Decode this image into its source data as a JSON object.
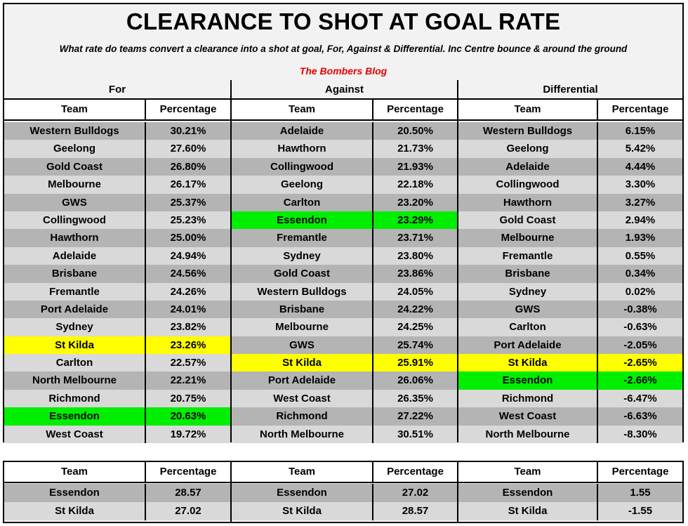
{
  "title": "CLEARANCE TO SHOT AT GOAL RATE",
  "subtitle": "What rate do teams convert a clearance into a shot at goal, For, Against & Differential. Inc Centre bounce & around the ground",
  "blog": "The Bombers Blog",
  "colors": {
    "odd_row": "#b4b4b4",
    "even_row": "#d9d9d9",
    "highlight_stkilda": "#ffff00",
    "highlight_essendon": "#00ee00",
    "blog_text": "#e60000"
  },
  "sections": [
    {
      "heading": "For",
      "col_team": "Team",
      "col_pct": "Percentage",
      "rows": [
        {
          "team": "Western Bulldogs",
          "pct": "30.21%",
          "hl": ""
        },
        {
          "team": "Geelong",
          "pct": "27.60%",
          "hl": ""
        },
        {
          "team": "Gold Coast",
          "pct": "26.80%",
          "hl": ""
        },
        {
          "team": "Melbourne",
          "pct": "26.17%",
          "hl": ""
        },
        {
          "team": "GWS",
          "pct": "25.37%",
          "hl": ""
        },
        {
          "team": "Collingwood",
          "pct": "25.23%",
          "hl": ""
        },
        {
          "team": "Hawthorn",
          "pct": "25.00%",
          "hl": ""
        },
        {
          "team": "Adelaide",
          "pct": "24.94%",
          "hl": ""
        },
        {
          "team": "Brisbane",
          "pct": "24.56%",
          "hl": ""
        },
        {
          "team": "Fremantle",
          "pct": "24.26%",
          "hl": ""
        },
        {
          "team": "Port Adelaide",
          "pct": "24.01%",
          "hl": ""
        },
        {
          "team": "Sydney",
          "pct": "23.82%",
          "hl": ""
        },
        {
          "team": "St Kilda",
          "pct": "23.26%",
          "hl": "yellow"
        },
        {
          "team": "Carlton",
          "pct": "22.57%",
          "hl": ""
        },
        {
          "team": "North Melbourne",
          "pct": "22.21%",
          "hl": ""
        },
        {
          "team": "Richmond",
          "pct": "20.75%",
          "hl": ""
        },
        {
          "team": "Essendon",
          "pct": "20.63%",
          "hl": "green"
        },
        {
          "team": "West Coast",
          "pct": "19.72%",
          "hl": ""
        }
      ]
    },
    {
      "heading": "Against",
      "col_team": "Team",
      "col_pct": "Percentage",
      "rows": [
        {
          "team": "Adelaide",
          "pct": "20.50%",
          "hl": ""
        },
        {
          "team": "Hawthorn",
          "pct": "21.73%",
          "hl": ""
        },
        {
          "team": "Collingwood",
          "pct": "21.93%",
          "hl": ""
        },
        {
          "team": "Geelong",
          "pct": "22.18%",
          "hl": ""
        },
        {
          "team": "Carlton",
          "pct": "23.20%",
          "hl": ""
        },
        {
          "team": "Essendon",
          "pct": "23.29%",
          "hl": "green"
        },
        {
          "team": "Fremantle",
          "pct": "23.71%",
          "hl": ""
        },
        {
          "team": "Sydney",
          "pct": "23.80%",
          "hl": ""
        },
        {
          "team": "Gold Coast",
          "pct": "23.86%",
          "hl": ""
        },
        {
          "team": "Western Bulldogs",
          "pct": "24.05%",
          "hl": ""
        },
        {
          "team": "Brisbane",
          "pct": "24.22%",
          "hl": ""
        },
        {
          "team": "Melbourne",
          "pct": "24.25%",
          "hl": ""
        },
        {
          "team": "GWS",
          "pct": "25.74%",
          "hl": ""
        },
        {
          "team": "St Kilda",
          "pct": "25.91%",
          "hl": "yellow"
        },
        {
          "team": "Port Adelaide",
          "pct": "26.06%",
          "hl": ""
        },
        {
          "team": "West Coast",
          "pct": "26.35%",
          "hl": ""
        },
        {
          "team": "Richmond",
          "pct": "27.22%",
          "hl": ""
        },
        {
          "team": "North Melbourne",
          "pct": "30.51%",
          "hl": ""
        }
      ]
    },
    {
      "heading": "Differential",
      "col_team": "Team",
      "col_pct": "Percentage",
      "rows": [
        {
          "team": "Western Bulldogs",
          "pct": "6.15%",
          "hl": ""
        },
        {
          "team": "Geelong",
          "pct": "5.42%",
          "hl": ""
        },
        {
          "team": "Adelaide",
          "pct": "4.44%",
          "hl": ""
        },
        {
          "team": "Collingwood",
          "pct": "3.30%",
          "hl": ""
        },
        {
          "team": "Hawthorn",
          "pct": "3.27%",
          "hl": ""
        },
        {
          "team": "Gold Coast",
          "pct": "2.94%",
          "hl": ""
        },
        {
          "team": "Melbourne",
          "pct": "1.93%",
          "hl": ""
        },
        {
          "team": "Fremantle",
          "pct": "0.55%",
          "hl": ""
        },
        {
          "team": "Brisbane",
          "pct": "0.34%",
          "hl": ""
        },
        {
          "team": "Sydney",
          "pct": "0.02%",
          "hl": ""
        },
        {
          "team": "GWS",
          "pct": "-0.38%",
          "hl": ""
        },
        {
          "team": "Carlton",
          "pct": "-0.63%",
          "hl": ""
        },
        {
          "team": "Port Adelaide",
          "pct": "-2.05%",
          "hl": ""
        },
        {
          "team": "St Kilda",
          "pct": "-2.65%",
          "hl": "yellow"
        },
        {
          "team": "Essendon",
          "pct": "-2.66%",
          "hl": "green"
        },
        {
          "team": "Richmond",
          "pct": "-6.47%",
          "hl": ""
        },
        {
          "team": "West Coast",
          "pct": "-6.63%",
          "hl": ""
        },
        {
          "team": "North Melbourne",
          "pct": "-8.30%",
          "hl": ""
        }
      ]
    }
  ],
  "summary": [
    {
      "col_team": "Team",
      "col_pct": "Percentage",
      "rows": [
        {
          "team": "Essendon",
          "pct": "28.57"
        },
        {
          "team": "St Kilda",
          "pct": "27.02"
        }
      ]
    },
    {
      "col_team": "Team",
      "col_pct": "Percentage",
      "rows": [
        {
          "team": "Essendon",
          "pct": "27.02"
        },
        {
          "team": "St Kilda",
          "pct": "28.57"
        }
      ]
    },
    {
      "col_team": "Team",
      "col_pct": "Percentage",
      "rows": [
        {
          "team": "Essendon",
          "pct": "1.55"
        },
        {
          "team": "St Kilda",
          "pct": "-1.55"
        }
      ]
    }
  ]
}
